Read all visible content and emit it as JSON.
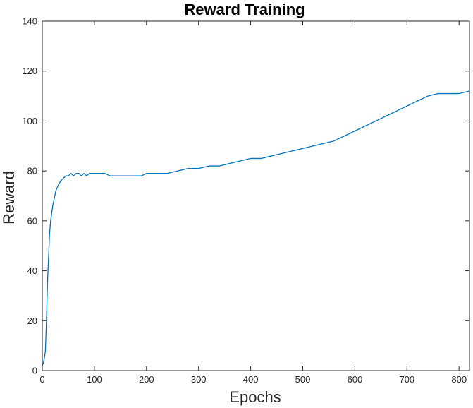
{
  "chart_data": {
    "type": "line",
    "title": "Reward Training",
    "xlabel": "Epochs",
    "ylabel": "Reward",
    "xlim": [
      0,
      820
    ],
    "ylim": [
      0,
      140
    ],
    "xticks": [
      0,
      100,
      200,
      300,
      400,
      500,
      600,
      700,
      800
    ],
    "yticks": [
      0,
      20,
      40,
      60,
      80,
      100,
      120,
      140
    ],
    "grid": false,
    "legend": "none",
    "series": [
      {
        "color": "#0072BD",
        "x": [
          0,
          2,
          4,
          6,
          8,
          10,
          12,
          14,
          16,
          18,
          20,
          22,
          24,
          26,
          28,
          30,
          35,
          40,
          45,
          50,
          55,
          60,
          65,
          70,
          75,
          80,
          85,
          90,
          95,
          100,
          110,
          120,
          130,
          140,
          150,
          160,
          170,
          180,
          190,
          200,
          220,
          240,
          260,
          280,
          300,
          320,
          340,
          360,
          380,
          400,
          420,
          440,
          460,
          480,
          500,
          520,
          540,
          560,
          580,
          600,
          620,
          640,
          660,
          680,
          700,
          720,
          740,
          760,
          780,
          800,
          820
        ],
        "y": [
          2,
          3,
          5,
          8,
          20,
          35,
          45,
          55,
          60,
          63,
          66,
          68,
          70,
          72,
          73,
          74,
          76,
          77,
          78,
          78,
          79,
          78,
          79,
          79,
          78,
          79,
          78,
          79,
          79,
          79,
          79,
          79,
          78,
          78,
          78,
          78,
          78,
          78,
          78,
          79,
          79,
          79,
          80,
          81,
          81,
          82,
          82,
          83,
          84,
          85,
          85,
          86,
          87,
          88,
          89,
          90,
          91,
          92,
          94,
          96,
          98,
          100,
          102,
          104,
          106,
          108,
          110,
          111,
          111,
          111,
          112
        ]
      }
    ]
  }
}
